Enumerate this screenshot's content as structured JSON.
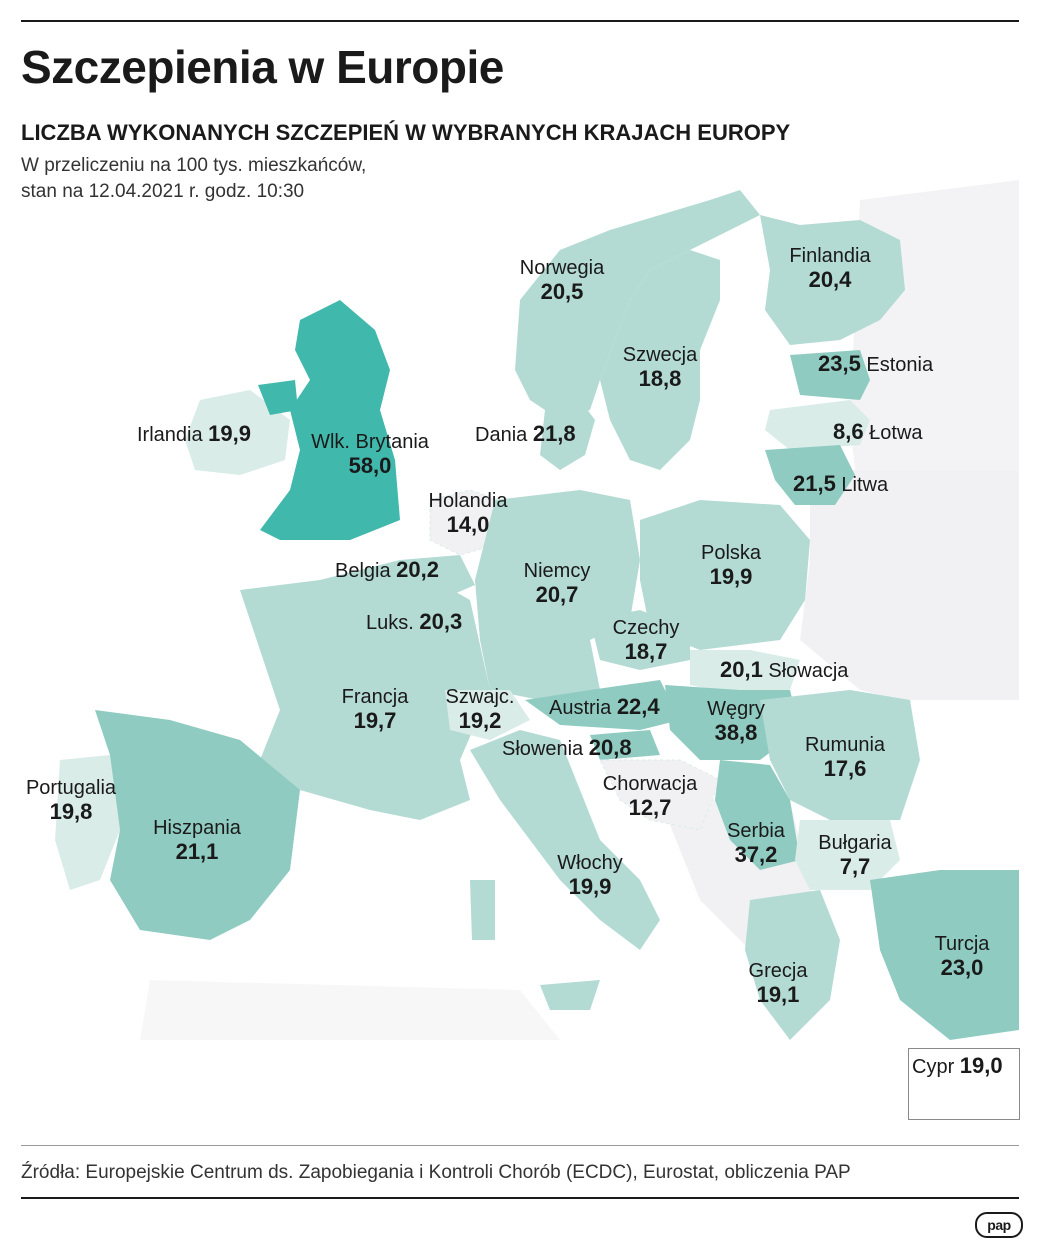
{
  "header": {
    "title": "Szczepienia w Europie",
    "subtitle": "LICZBA WYKONANYCH SZCZEPIEŃ W WYBRANYCH KRAJACH EUROPY",
    "note_line1": "W przeliczeniu na 100 tys. mieszkańców,",
    "note_line2": "stan na 12.04.2021 r. godz. 10:30"
  },
  "colors": {
    "light": "#d9ece8",
    "medium": "#b3dad3",
    "dark": "#8fcbc1",
    "darkest": "#41b8ac",
    "nodata": "#f1f1f3",
    "water": "#ffffff"
  },
  "countries": [
    {
      "name": "Norwegia",
      "value": "20,5"
    },
    {
      "name": "Finlandia",
      "value": "20,4"
    },
    {
      "name": "Szwecja",
      "value": "18,8"
    },
    {
      "name": "Estonia",
      "value": "23,5"
    },
    {
      "name": "Irlandia",
      "value": "19,9"
    },
    {
      "name": "Wlk. Brytania",
      "value": "58,0"
    },
    {
      "name": "Dania",
      "value": "21,8"
    },
    {
      "name": "Łotwa",
      "value": "8,6"
    },
    {
      "name": "Litwa",
      "value": "21,5"
    },
    {
      "name": "Holandia",
      "value": "14,0"
    },
    {
      "name": "Belgia",
      "value": "20,2"
    },
    {
      "name": "Niemcy",
      "value": "20,7"
    },
    {
      "name": "Polska",
      "value": "19,9"
    },
    {
      "name": "Luks.",
      "value": "20,3"
    },
    {
      "name": "Czechy",
      "value": "18,7"
    },
    {
      "name": "Słowacja",
      "value": "20,1"
    },
    {
      "name": "Francja",
      "value": "19,7"
    },
    {
      "name": "Szwajc.",
      "value": "19,2"
    },
    {
      "name": "Austria",
      "value": "22,4"
    },
    {
      "name": "Węgry",
      "value": "38,8"
    },
    {
      "name": "Rumunia",
      "value": "17,6"
    },
    {
      "name": "Słowenia",
      "value": "20,8"
    },
    {
      "name": "Portugalia",
      "value": "19,8"
    },
    {
      "name": "Chorwacja",
      "value": "12,7"
    },
    {
      "name": "Hiszpania",
      "value": "21,1"
    },
    {
      "name": "Serbia",
      "value": "37,2"
    },
    {
      "name": "Bułgaria",
      "value": "7,7"
    },
    {
      "name": "Włochy",
      "value": "19,9"
    },
    {
      "name": "Turcja",
      "value": "23,0"
    },
    {
      "name": "Grecja",
      "value": "19,1"
    },
    {
      "name": "Cypr",
      "value": "19,0"
    }
  ],
  "footer": {
    "source": "Źródła: Europejskie Centrum ds. Zapobiegania i Kontroli Chorób (ECDC), Eurostat, obliczenia PAP",
    "logo": "pap"
  }
}
